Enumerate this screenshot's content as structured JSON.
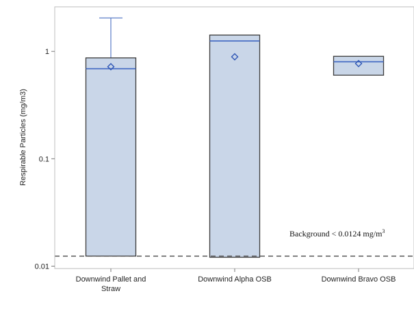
{
  "chart_data": {
    "type": "box",
    "ylabel": "Respirable Particles (mg/m3)",
    "yscale": "log",
    "ylim": [
      0.0095,
      2.6
    ],
    "yticks": [
      {
        "value": 0.01,
        "label": "0.01"
      },
      {
        "value": 0.1,
        "label": "0.1"
      },
      {
        "value": 1,
        "label": "1"
      }
    ],
    "categories": [
      {
        "label_lines": [
          "Downwind Pallet and",
          "Straw"
        ]
      },
      {
        "label_lines": [
          "Downwind Alpha OSB"
        ]
      },
      {
        "label_lines": [
          "Downwind Bravo OSB"
        ]
      }
    ],
    "boxes": [
      {
        "q1": 0.0124,
        "median": 0.69,
        "q3": 0.87,
        "mean": 0.72,
        "whisker_high": 2.05
      },
      {
        "q1": 0.0121,
        "median": 1.25,
        "q3": 1.42,
        "mean": 0.89
      },
      {
        "q1": 0.6,
        "median": 0.8,
        "q3": 0.9,
        "mean": 0.77
      }
    ],
    "reference_line": {
      "value": 0.0124,
      "style": "dashed"
    },
    "annotation": {
      "text": "Background < 0.0124 mg/m",
      "superscript": "3"
    },
    "colors": {
      "box_fill": "#c9d6e8",
      "box_edge": "#3b3b3b",
      "median": "#3f67c2",
      "mean_marker": "#2f57b5",
      "whisker": "#5a7cc8",
      "reference": "#555555"
    },
    "grid": false
  }
}
